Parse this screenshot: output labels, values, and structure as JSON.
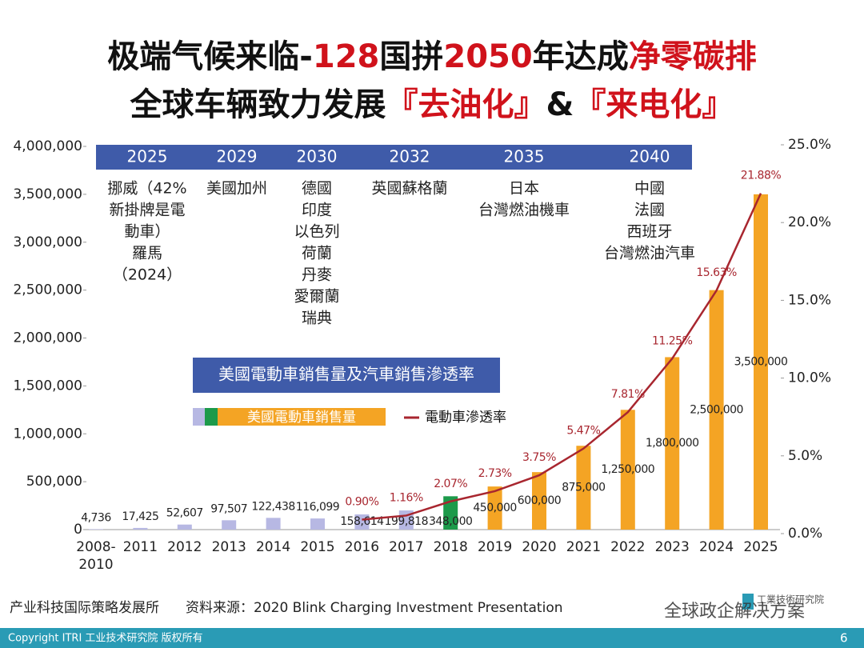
{
  "header": {
    "lines": [
      [
        {
          "text": "极端气候来临-",
          "color": "#111111"
        },
        {
          "text": "128",
          "color": "#d0121b"
        },
        {
          "text": "国拼",
          "color": "#111111"
        },
        {
          "text": "2050",
          "color": "#d0121b"
        },
        {
          "text": "年达成",
          "color": "#111111"
        },
        {
          "text": "净零碳排",
          "color": "#d0121b"
        }
      ],
      [
        {
          "text": "全球车辆致力发展",
          "color": "#111111"
        },
        {
          "text": "『去油化』",
          "color": "#d0121b"
        },
        {
          "text": "&",
          "color": "#111111"
        },
        {
          "text": "『来电化』",
          "color": "#d0121b"
        }
      ]
    ]
  },
  "chart_data": {
    "type": "bar",
    "title": "美國電動車銷售量及汽車銷售滲透率",
    "categories": [
      "2008-2010",
      "2011",
      "2012",
      "2013",
      "2014",
      "2015",
      "2016",
      "2017",
      "2018",
      "2019",
      "2020",
      "2021",
      "2022",
      "2023",
      "2024",
      "2025"
    ],
    "series": [
      {
        "name": "美國電動車銷售量",
        "type": "bar",
        "colors": [
          "#b7b8e3",
          "#b7b8e3",
          "#b7b8e3",
          "#b7b8e3",
          "#b7b8e3",
          "#b7b8e3",
          "#b7b8e3",
          "#b7b8e3",
          "#1c9a4a",
          "#f4a424",
          "#f4a424",
          "#f4a424",
          "#f4a424",
          "#f4a424",
          "#f4a424",
          "#f4a424"
        ],
        "values": [
          4736,
          17425,
          52607,
          97507,
          122438,
          116099,
          158614,
          199818,
          348000,
          450000,
          600000,
          875000,
          1250000,
          1800000,
          2500000,
          3500000
        ],
        "value_labels": [
          "4,736",
          "17,425",
          "52,607",
          "97,507",
          "122,438",
          "116,099",
          "158,614",
          "199,818",
          "348,000",
          "450,000",
          "600,000",
          "875,000",
          "1,250,000",
          "1,800,000",
          "2,500,000",
          "3,500,000"
        ]
      },
      {
        "name": "電動車滲透率",
        "type": "line",
        "axis": "y2",
        "color": "#a8262f",
        "values": [
          null,
          null,
          null,
          null,
          null,
          null,
          0.9,
          1.16,
          2.07,
          2.73,
          3.75,
          5.47,
          7.81,
          11.25,
          15.63,
          21.88
        ],
        "value_labels": [
          null,
          null,
          null,
          null,
          null,
          null,
          "0.90%",
          "1.16%",
          "2.07%",
          "2.73%",
          "3.75%",
          "5.47%",
          "7.81%",
          "11.25%",
          "15.63%",
          "21.88%"
        ]
      }
    ],
    "ylim": [
      0,
      4000000
    ],
    "yticks": [
      0,
      {
        "value": 500000,
        "label": "500,000"
      },
      {
        "value": 1000000,
        "label": "1,000,000"
      },
      {
        "value": 1500000,
        "label": "1,500,000"
      },
      {
        "value": 2000000,
        "label": "2,000,000"
      },
      {
        "value": 2500000,
        "label": "2,500,000"
      },
      {
        "value": 3000000,
        "label": "3,000,000"
      },
      {
        "value": 3500000,
        "label": "3,500,000"
      },
      {
        "value": 4000000,
        "label": "4,000,000"
      }
    ],
    "y2lim": [
      0,
      25
    ],
    "y2ticks": [
      {
        "value": 0,
        "label": "0.0%"
      },
      {
        "value": 5,
        "label": "5.0%"
      },
      {
        "value": 10,
        "label": "10.0%"
      },
      {
        "value": 15,
        "label": "15.0%"
      },
      {
        "value": 20,
        "label": "20.0%"
      },
      {
        "value": 25,
        "label": "25.0%"
      }
    ],
    "timeline": [
      {
        "year": "2025",
        "countries": [
          "挪威（42%",
          "新掛牌是電",
          "動車）",
          "羅馬",
          "（2024）"
        ]
      },
      {
        "year": "2029",
        "countries": [
          "美國加州"
        ]
      },
      {
        "year": "2030",
        "countries": [
          "德國",
          "印度",
          "以色列",
          "荷蘭",
          "丹麥",
          "愛爾蘭",
          "瑞典"
        ]
      },
      {
        "year": "2032",
        "countries": [
          "英國蘇格蘭"
        ]
      },
      {
        "year": "2035",
        "countries": [
          "日本",
          "台灣燃油機車"
        ]
      },
      {
        "year": "2040",
        "countries": [
          "中國",
          "法國",
          "西班牙",
          "台灣燃油汽車"
        ]
      }
    ]
  },
  "footer": {
    "org": "产业科技国际策略发展所",
    "source": "资料来源：2020 Blink Charging Investment Presentation",
    "watermark": "全球政企解决方案",
    "logo": "工業技術研究院",
    "copyright": "Copyright ITRI  工业技术研究院  版权所有",
    "page": "6"
  }
}
